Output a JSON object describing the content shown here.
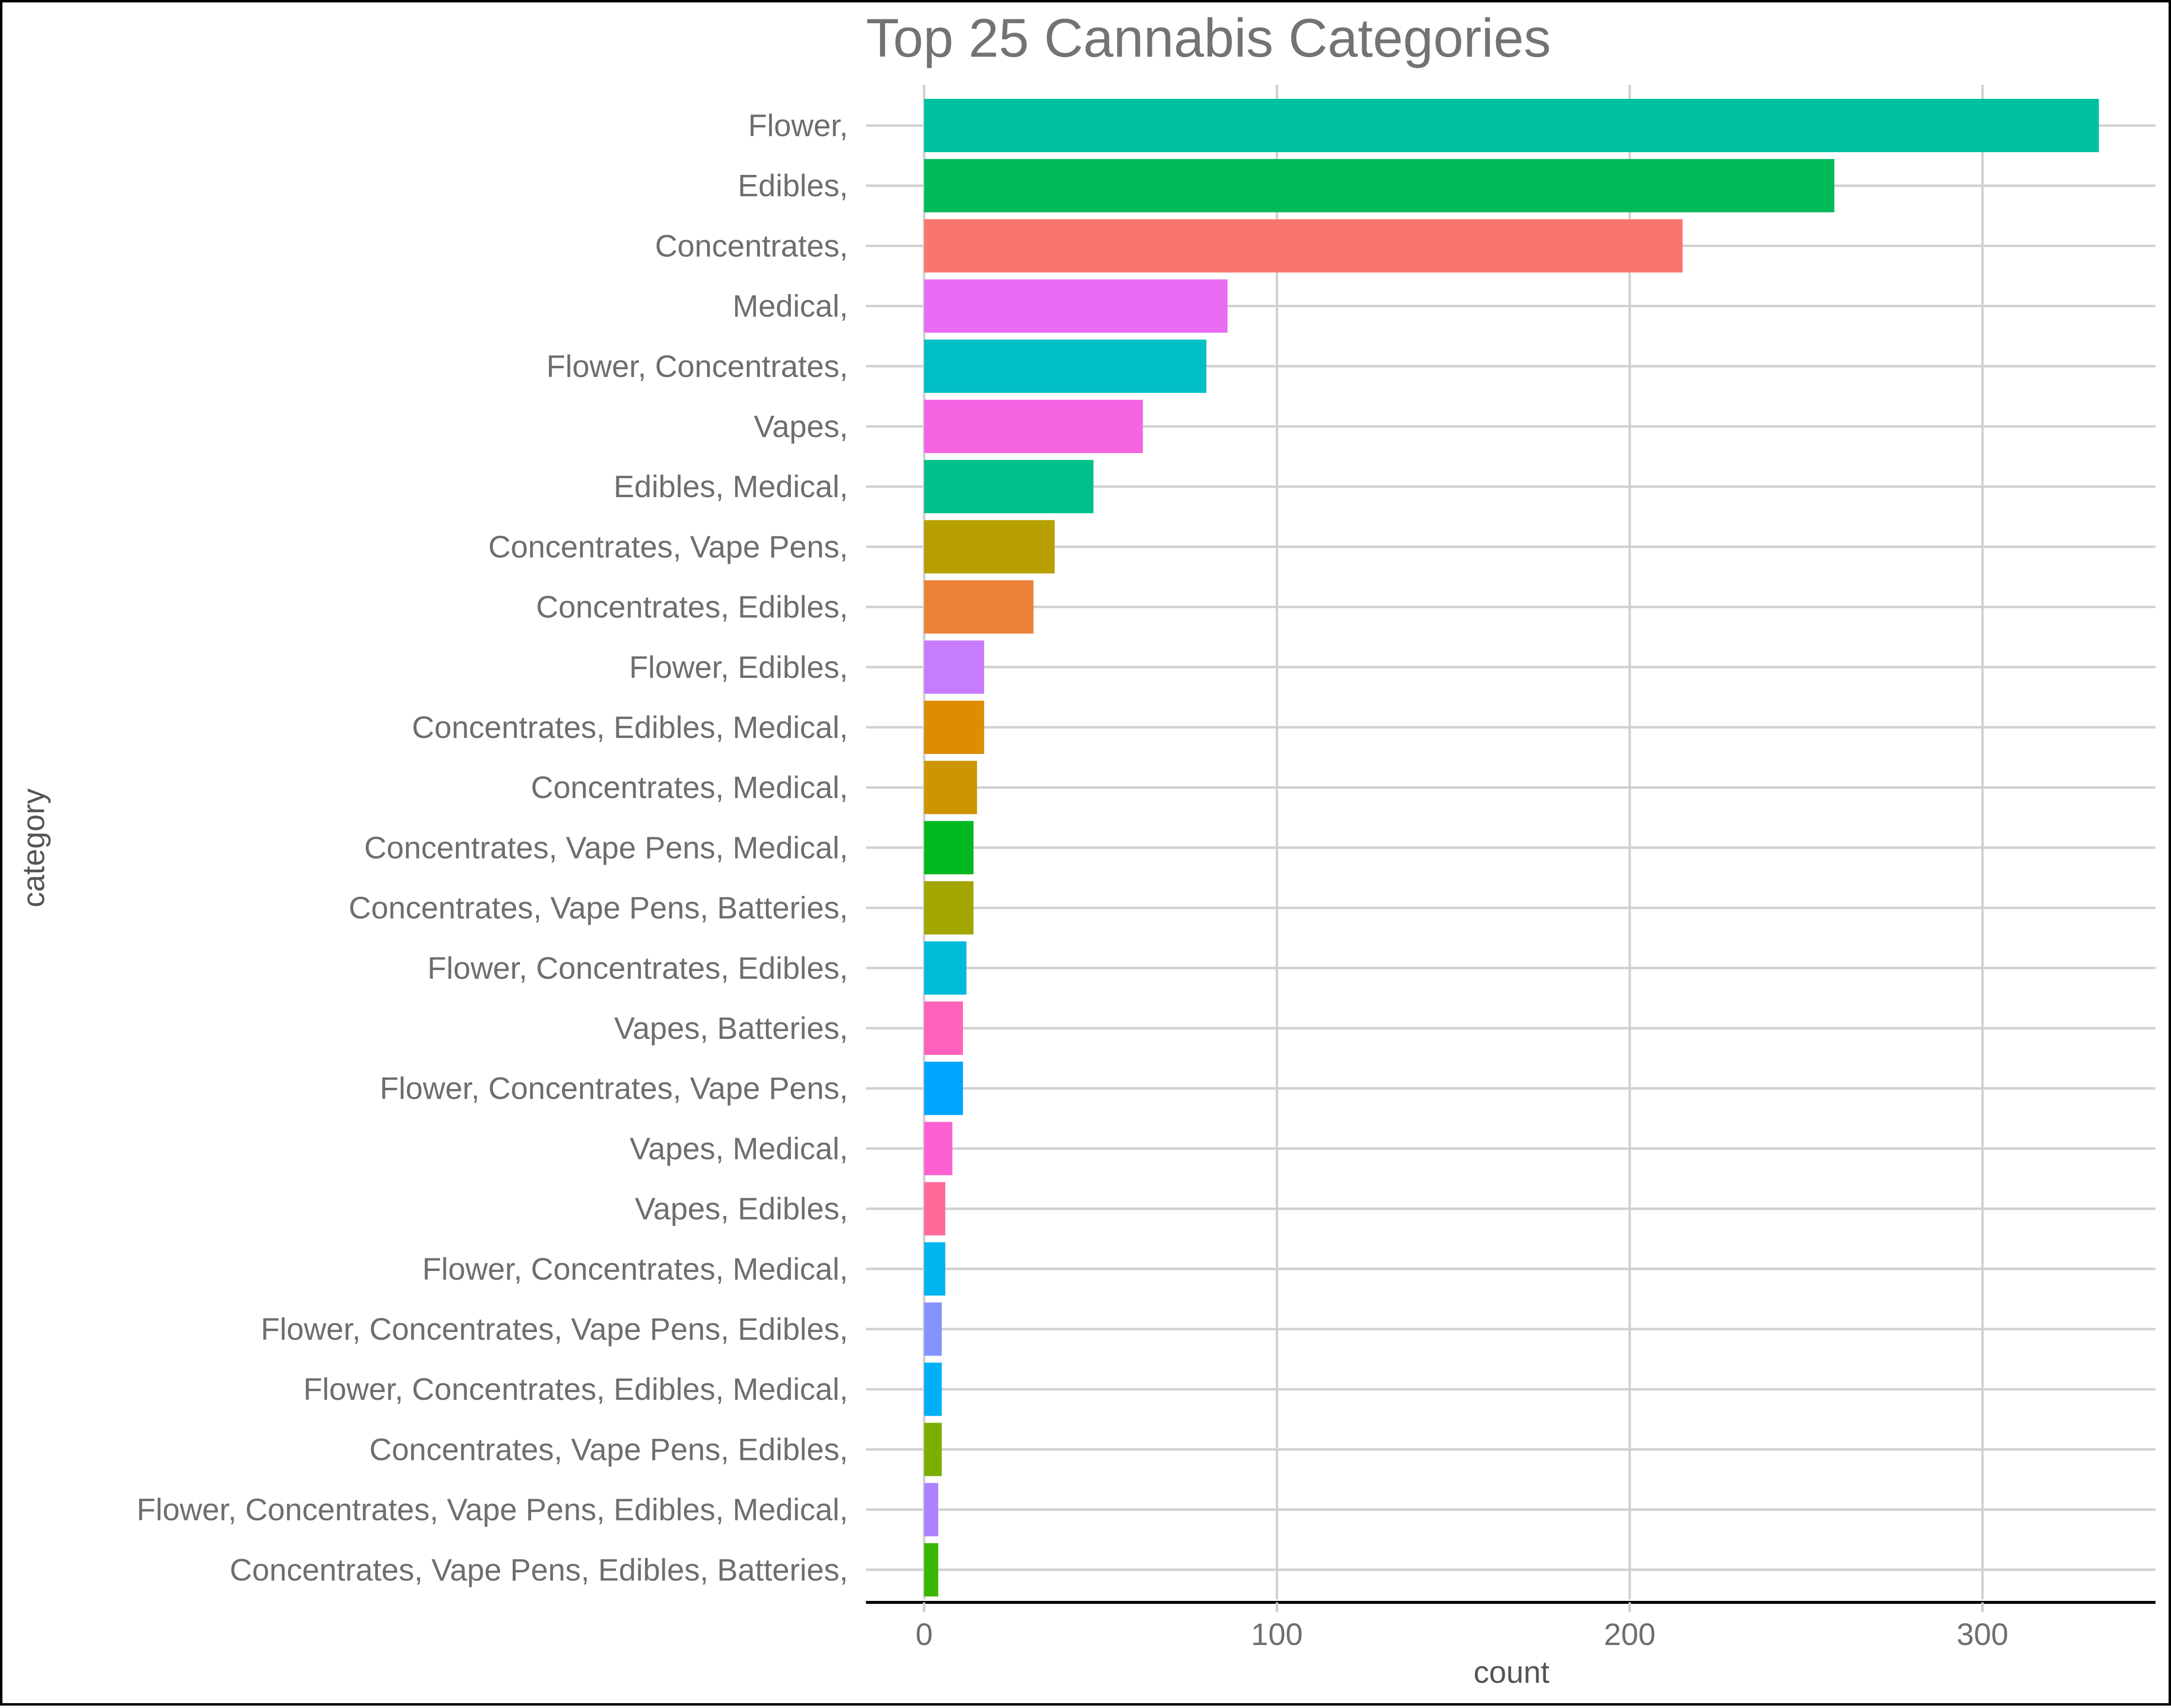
{
  "chart_data": {
    "type": "bar",
    "orientation": "horizontal",
    "title": "Top 25 Cannabis Categories",
    "xlabel": "count",
    "ylabel": "category",
    "xlim": [
      -16,
      351
    ],
    "x_ticks": [
      0,
      100,
      200,
      300
    ],
    "grid": true,
    "legend": "none",
    "categories": [
      "Flower,",
      "Edibles,",
      "Concentrates,",
      "Medical,",
      "Flower, Concentrates,",
      "Vapes,",
      "Edibles, Medical,",
      "Concentrates, Vape Pens,",
      "Concentrates, Edibles,",
      "Flower, Edibles,",
      "Concentrates, Edibles, Medical,",
      "Concentrates, Medical,",
      "Concentrates, Vape Pens, Medical,",
      "Concentrates, Vape Pens, Batteries,",
      "Flower, Concentrates, Edibles,",
      "Vapes, Batteries,",
      "Flower, Concentrates, Vape Pens,",
      "Vapes, Medical,",
      "Vapes, Edibles,",
      "Flower, Concentrates, Medical,",
      "Flower, Concentrates, Vape Pens, Edibles,",
      "Flower, Concentrates, Edibles, Medical,",
      "Concentrates, Vape Pens, Edibles,",
      "Flower, Concentrates, Vape Pens, Edibles, Medical,",
      "Concentrates, Vape Pens, Edibles, Batteries,"
    ],
    "values": [
      333,
      258,
      215,
      86,
      80,
      62,
      48,
      37,
      31,
      17,
      17,
      15,
      14,
      14,
      12,
      11,
      11,
      8,
      6,
      6,
      5,
      5,
      5,
      4,
      4
    ],
    "colors": [
      "#00c19f",
      "#00ba5a",
      "#f8766d",
      "#e76bf3",
      "#00bfc4",
      "#f564e3",
      "#00c08b",
      "#b79f00",
      "#ec8239",
      "#c77cff",
      "#de8c00",
      "#cd9600",
      "#00b81f",
      "#a3a500",
      "#00bcd8",
      "#ff62bc",
      "#00a5ff",
      "#fd61d1",
      "#ff6a98",
      "#00b4f0",
      "#8494ff",
      "#00b0f6",
      "#7cae00",
      "#ab82ff",
      "#39b600"
    ]
  }
}
